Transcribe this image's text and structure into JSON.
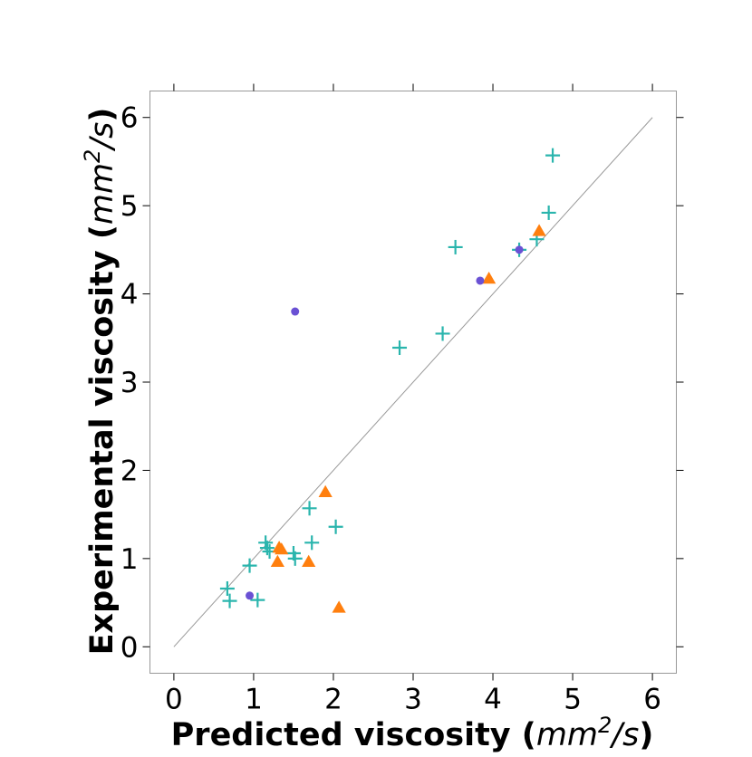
{
  "chart_data": {
    "type": "scatter",
    "xlabel": "Predicted viscosity",
    "ylabel": "Experimental viscosity",
    "axis_unit": {
      "base": "mm",
      "exponent": "2",
      "suffix": "/s"
    },
    "xlim": [
      -0.3,
      6.3
    ],
    "ylim": [
      -0.3,
      6.3
    ],
    "xticks": [
      0,
      1,
      2,
      3,
      4,
      5,
      6
    ],
    "yticks": [
      0,
      1,
      2,
      3,
      4,
      5,
      6
    ],
    "grid": false,
    "legend": "none",
    "reference_line": {
      "x": [
        0,
        6
      ],
      "y": [
        0,
        6
      ],
      "color": "#999999"
    },
    "series": [
      {
        "marker": "plus",
        "color": "#2ab5ad",
        "points": [
          [
            0.67,
            0.66
          ],
          [
            0.7,
            0.52
          ],
          [
            0.95,
            0.92
          ],
          [
            1.05,
            0.53
          ],
          [
            1.15,
            1.18
          ],
          [
            1.17,
            1.12
          ],
          [
            1.2,
            1.08
          ],
          [
            1.5,
            1.06
          ],
          [
            1.52,
            1.0
          ],
          [
            1.7,
            1.57
          ],
          [
            1.73,
            1.18
          ],
          [
            2.03,
            1.36
          ],
          [
            2.83,
            3.39
          ],
          [
            3.37,
            3.55
          ],
          [
            3.53,
            4.53
          ],
          [
            4.33,
            4.5
          ],
          [
            4.55,
            4.62
          ],
          [
            4.7,
            4.92
          ],
          [
            4.75,
            5.57
          ]
        ]
      },
      {
        "marker": "triangle",
        "color": "#ff7f0e",
        "points": [
          [
            1.3,
            0.96
          ],
          [
            1.32,
            1.12
          ],
          [
            1.35,
            1.1
          ],
          [
            1.69,
            0.96
          ],
          [
            1.9,
            1.75
          ],
          [
            2.07,
            0.44
          ],
          [
            3.95,
            4.17
          ],
          [
            4.58,
            4.71
          ]
        ]
      },
      {
        "marker": "circle",
        "color": "#6a51d4",
        "points": [
          [
            0.95,
            0.58
          ],
          [
            1.52,
            3.8
          ],
          [
            3.84,
            4.15
          ],
          [
            4.33,
            4.5
          ]
        ]
      }
    ]
  }
}
